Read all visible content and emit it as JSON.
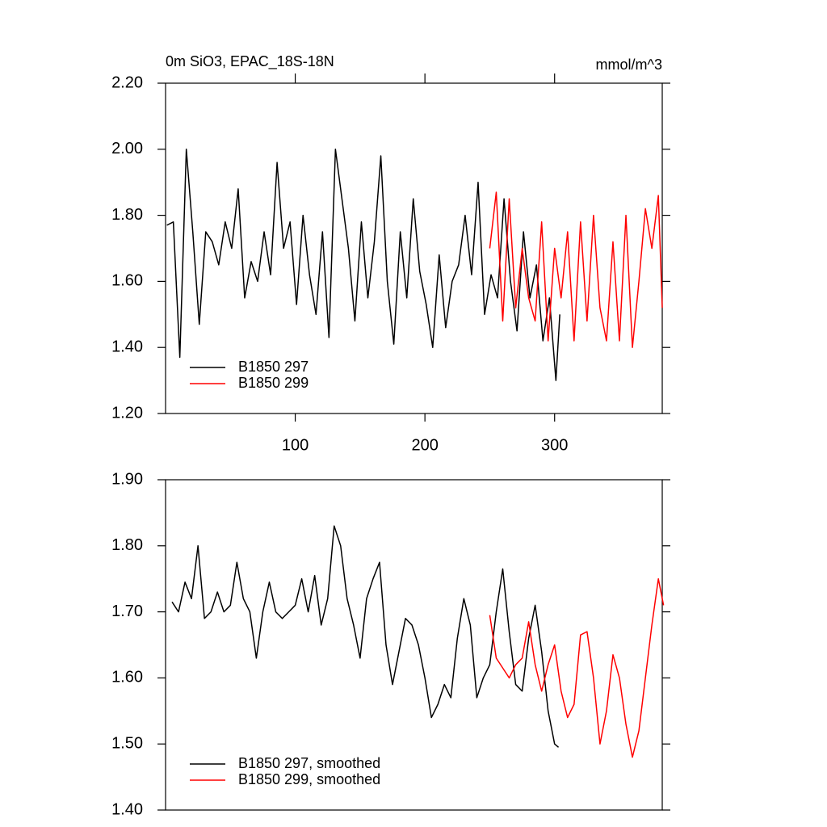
{
  "chart_data": [
    {
      "type": "line",
      "title": "0m SiO3, EPAC_18S-18N",
      "subtitle": "mmol/m^3",
      "xlim": [
        0,
        383
      ],
      "xticks": [
        100,
        200,
        300
      ],
      "ylim": [
        1.2,
        2.2
      ],
      "yticks": [
        {
          "value": 1.2,
          "label": "1.20"
        },
        {
          "value": 1.4,
          "label": "1.40"
        },
        {
          "value": 1.6,
          "label": "1.60"
        },
        {
          "value": 1.8,
          "label": "1.80"
        },
        {
          "value": 2.0,
          "label": "2.00"
        },
        {
          "value": 2.2,
          "label": "2.20"
        }
      ],
      "legend": "lower left",
      "series": [
        {
          "name": "B1850 297",
          "color": "#000000",
          "x": [
            1,
            6,
            11,
            16,
            21,
            26,
            31,
            36,
            41,
            46,
            51,
            56,
            61,
            66,
            71,
            76,
            81,
            86,
            91,
            96,
            101,
            106,
            111,
            116,
            121,
            126,
            131,
            136,
            141,
            146,
            151,
            156,
            161,
            166,
            171,
            176,
            181,
            186,
            191,
            196,
            201,
            206,
            211,
            216,
            221,
            226,
            231,
            236,
            241,
            246,
            251,
            256,
            261,
            266,
            271,
            276,
            281,
            286,
            291,
            296,
            301,
            304
          ],
          "values": [
            1.77,
            1.78,
            1.37,
            2.0,
            1.75,
            1.47,
            1.75,
            1.72,
            1.65,
            1.78,
            1.7,
            1.88,
            1.55,
            1.66,
            1.6,
            1.75,
            1.62,
            1.96,
            1.7,
            1.78,
            1.53,
            1.8,
            1.62,
            1.5,
            1.75,
            1.43,
            2.0,
            1.85,
            1.7,
            1.48,
            1.78,
            1.55,
            1.72,
            1.98,
            1.6,
            1.41,
            1.75,
            1.55,
            1.85,
            1.63,
            1.53,
            1.4,
            1.68,
            1.46,
            1.6,
            1.65,
            1.8,
            1.62,
            1.9,
            1.5,
            1.62,
            1.55,
            1.85,
            1.6,
            1.45,
            1.75,
            1.55,
            1.65,
            1.42,
            1.55,
            1.3,
            1.5
          ]
        },
        {
          "name": "B1850 299",
          "color": "#ff0000",
          "x": [
            250,
            255,
            260,
            265,
            270,
            275,
            280,
            285,
            290,
            295,
            300,
            305,
            310,
            315,
            320,
            325,
            330,
            335,
            340,
            345,
            350,
            355,
            360,
            365,
            370,
            375,
            380,
            383
          ],
          "values": [
            1.7,
            1.87,
            1.48,
            1.85,
            1.52,
            1.7,
            1.55,
            1.48,
            1.78,
            1.42,
            1.7,
            1.55,
            1.75,
            1.42,
            1.78,
            1.48,
            1.8,
            1.52,
            1.42,
            1.72,
            1.42,
            1.8,
            1.4,
            1.6,
            1.82,
            1.7,
            1.86,
            1.52
          ]
        }
      ]
    },
    {
      "type": "line",
      "xlim": [
        0,
        383
      ],
      "ylim": [
        1.4,
        1.9
      ],
      "yticks": [
        {
          "value": 1.4,
          "label": "1.40"
        },
        {
          "value": 1.5,
          "label": "1.50"
        },
        {
          "value": 1.6,
          "label": "1.60"
        },
        {
          "value": 1.7,
          "label": "1.70"
        },
        {
          "value": 1.8,
          "label": "1.80"
        },
        {
          "value": 1.9,
          "label": "1.90"
        }
      ],
      "legend": "lower left",
      "series": [
        {
          "name": "B1850 297, smoothed",
          "color": "#000000",
          "x": [
            5,
            10,
            15,
            20,
            25,
            30,
            35,
            40,
            45,
            50,
            55,
            60,
            65,
            70,
            75,
            80,
            85,
            90,
            95,
            100,
            105,
            110,
            115,
            120,
            125,
            130,
            135,
            140,
            145,
            150,
            155,
            160,
            165,
            170,
            175,
            180,
            185,
            190,
            195,
            200,
            205,
            210,
            215,
            220,
            225,
            230,
            235,
            240,
            245,
            250,
            255,
            260,
            265,
            270,
            275,
            280,
            285,
            290,
            295,
            300,
            303
          ],
          "values": [
            1.715,
            1.7,
            1.745,
            1.72,
            1.8,
            1.69,
            1.7,
            1.73,
            1.7,
            1.71,
            1.775,
            1.72,
            1.7,
            1.63,
            1.7,
            1.745,
            1.7,
            1.69,
            1.7,
            1.71,
            1.75,
            1.7,
            1.755,
            1.68,
            1.72,
            1.83,
            1.8,
            1.72,
            1.68,
            1.63,
            1.72,
            1.75,
            1.775,
            1.65,
            1.59,
            1.64,
            1.69,
            1.68,
            1.65,
            1.6,
            1.54,
            1.56,
            1.59,
            1.57,
            1.66,
            1.72,
            1.68,
            1.57,
            1.6,
            1.62,
            1.7,
            1.765,
            1.67,
            1.59,
            1.58,
            1.66,
            1.71,
            1.64,
            1.55,
            1.5,
            1.495
          ]
        },
        {
          "name": "B1850 299, smoothed",
          "color": "#ff0000",
          "x": [
            250,
            255,
            260,
            265,
            270,
            275,
            280,
            285,
            290,
            295,
            300,
            305,
            310,
            315,
            320,
            325,
            330,
            335,
            340,
            345,
            350,
            355,
            360,
            365,
            370,
            375,
            380,
            384
          ],
          "values": [
            1.695,
            1.63,
            1.615,
            1.6,
            1.62,
            1.63,
            1.685,
            1.62,
            1.58,
            1.62,
            1.65,
            1.58,
            1.54,
            1.56,
            1.665,
            1.67,
            1.6,
            1.5,
            1.55,
            1.635,
            1.6,
            1.53,
            1.48,
            1.52,
            1.6,
            1.68,
            1.75,
            1.71
          ]
        }
      ]
    }
  ]
}
